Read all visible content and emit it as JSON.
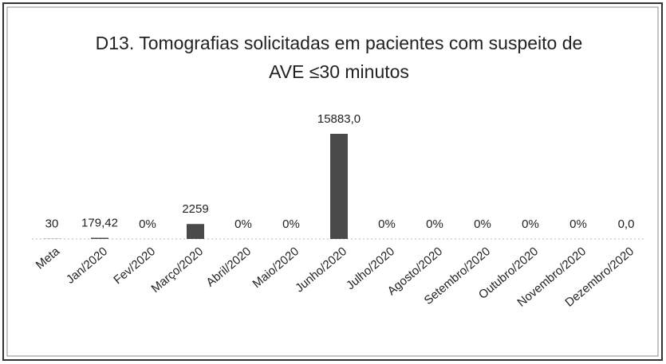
{
  "chart_data": {
    "type": "bar",
    "title": "D13. Tomografias solicitadas em pacientes com suspeito de AVE ≤30 minutos",
    "categories": [
      "Meta",
      "Jan/2020",
      "Fev/2020",
      "Março/2020",
      "Abril/2020",
      "Maio/2020",
      "Junho/2020",
      "Julho/2020",
      "Agosto/2020",
      "Setembro/2020",
      "Outubro/2020",
      "Novembro/2020",
      "Dezembro/2020"
    ],
    "values": [
      30,
      179.42,
      0,
      2259,
      0,
      0,
      15883,
      0,
      0,
      0,
      0,
      0,
      0
    ],
    "value_labels": [
      "30",
      "179,42",
      "0%",
      "2259",
      "0%",
      "0%",
      "15883,0",
      "0%",
      "0%",
      "0%",
      "0%",
      "0%",
      "0,0"
    ],
    "color": "#4a4a4a"
  }
}
